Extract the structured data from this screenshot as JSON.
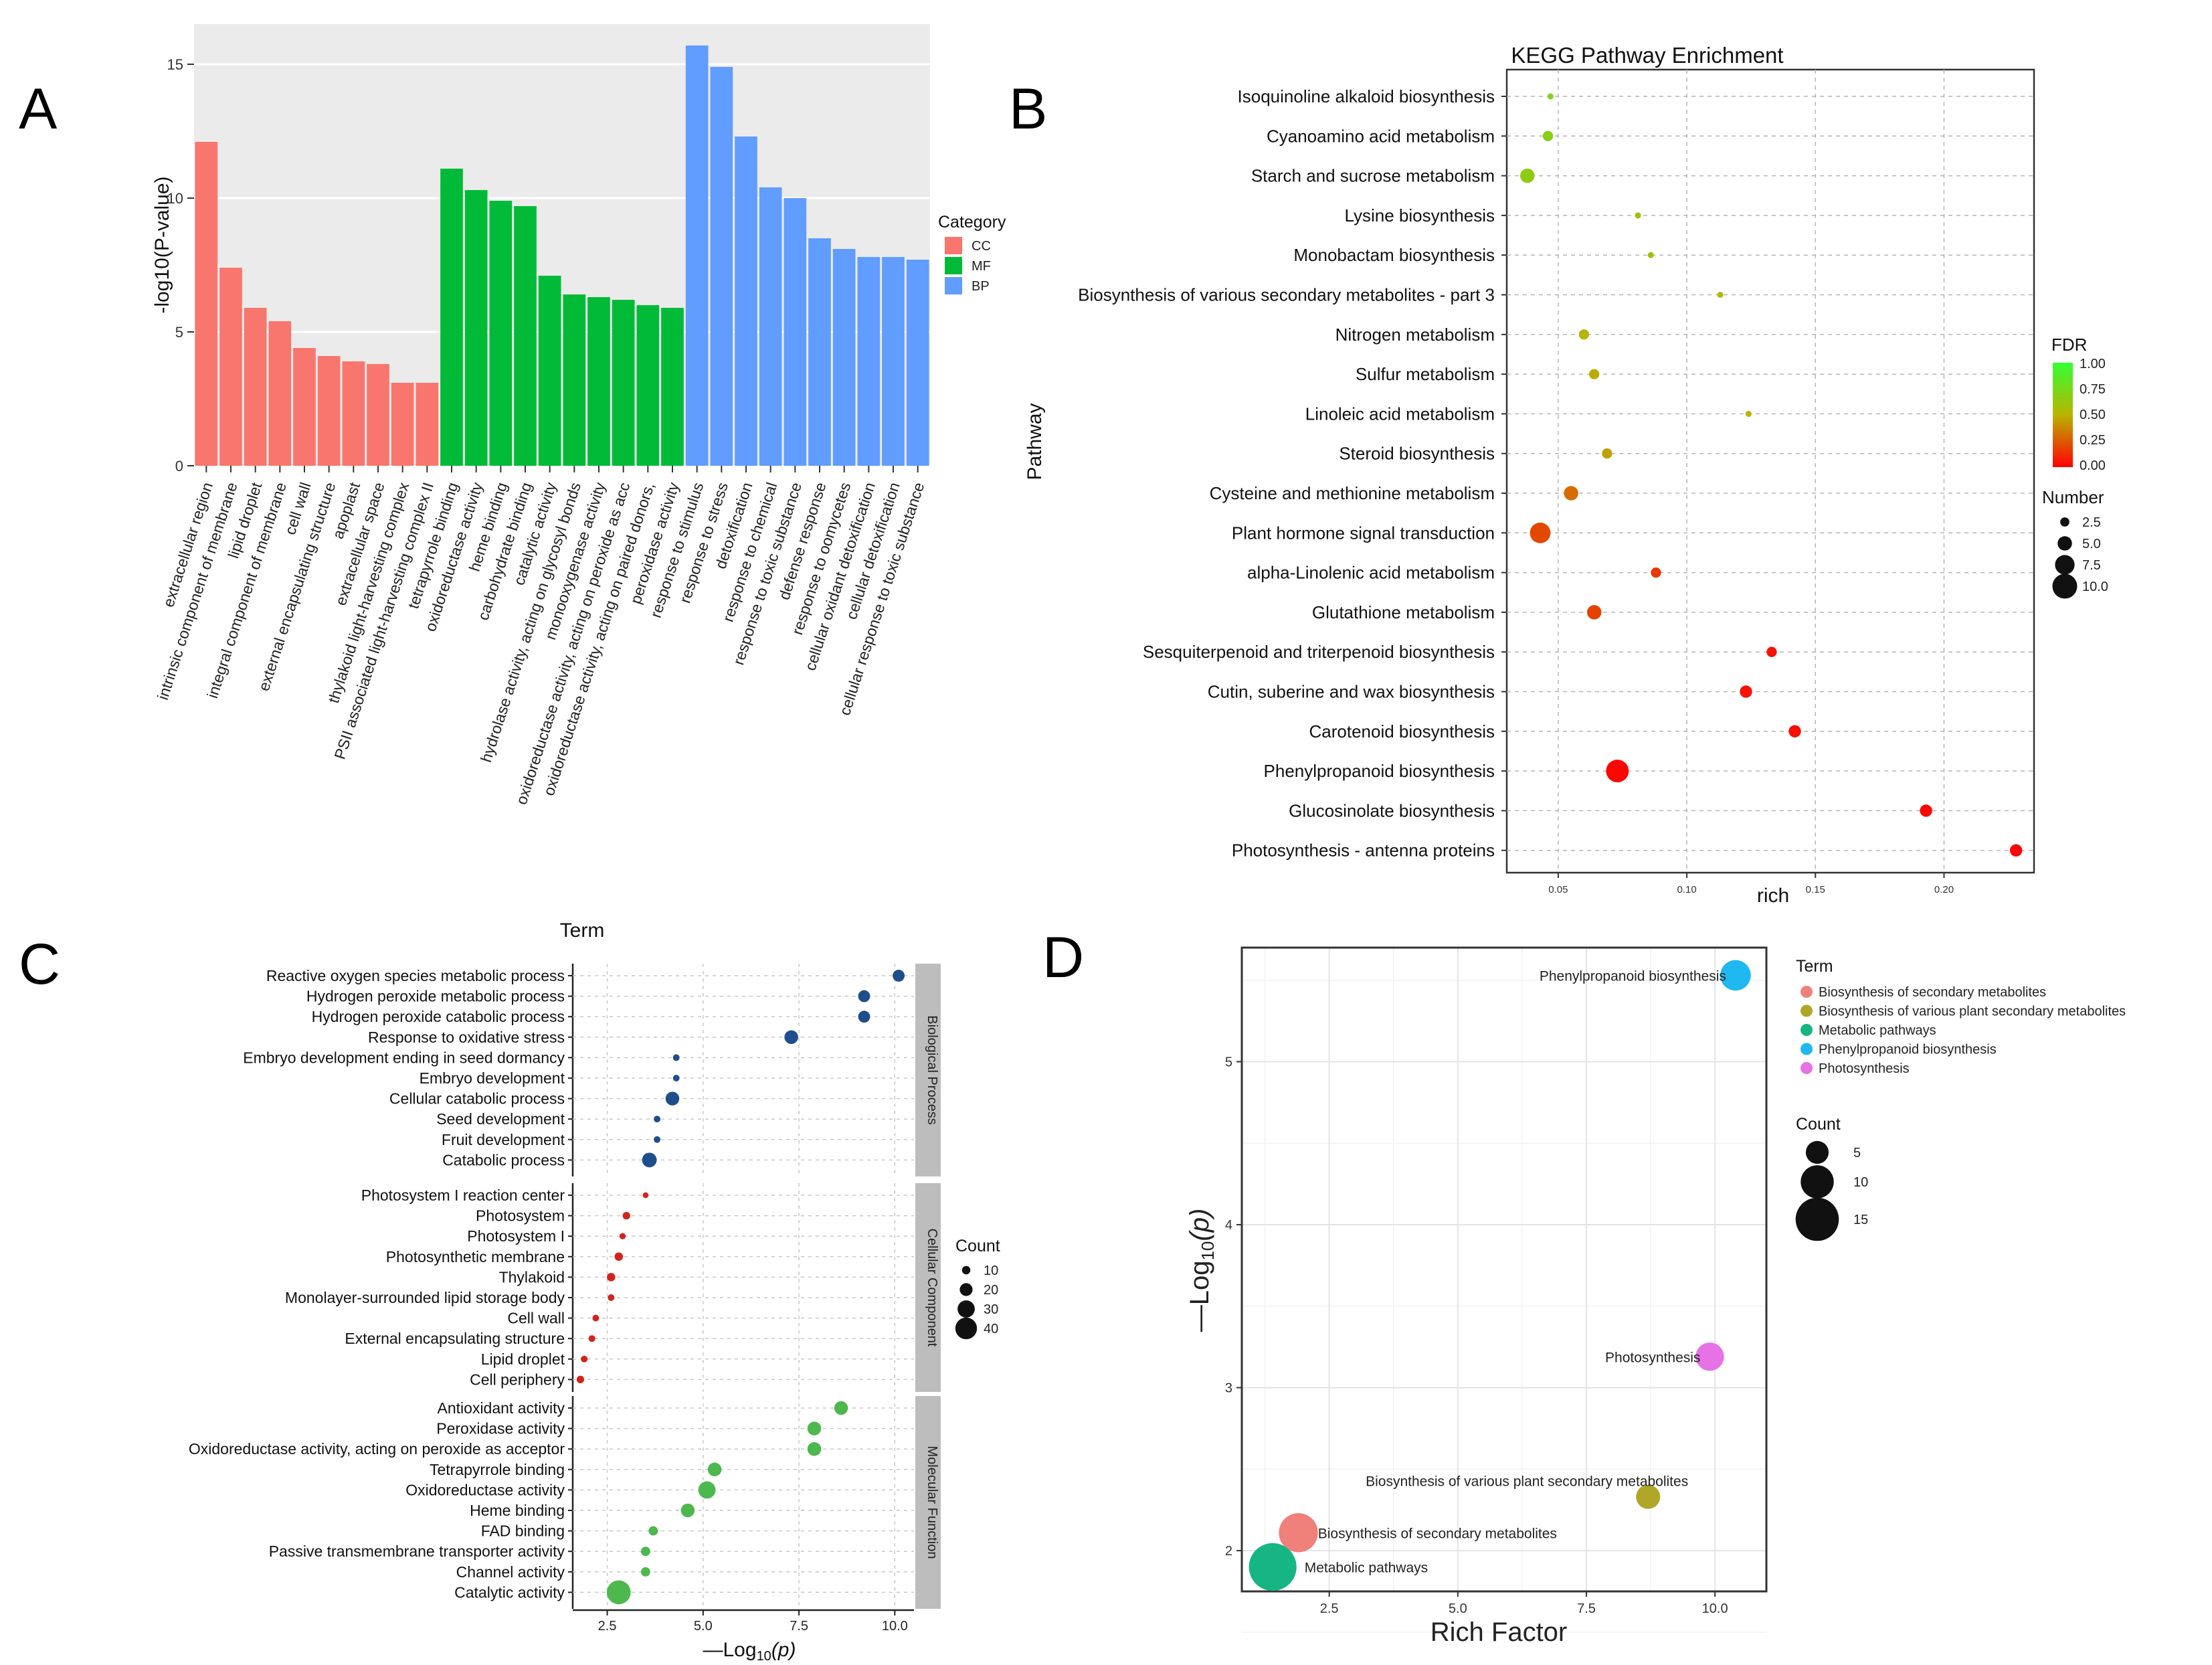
{
  "panel_labels": [
    "A",
    "B",
    "C",
    "D"
  ],
  "chart_data": [
    {
      "panel": "A",
      "type": "bar",
      "ylabel": "-log10(P-value)",
      "ylim": [
        0,
        16.5
      ],
      "yticks": [
        "0",
        "5",
        "10",
        "15"
      ],
      "ytick_values": [
        0,
        5,
        10,
        15
      ],
      "legend": {
        "title": "Category",
        "placement": "right",
        "entries": [
          {
            "name": "CC",
            "color": "#F8766D"
          },
          {
            "name": "MF",
            "color": "#00BA38"
          },
          {
            "name": "BP",
            "color": "#619CFF"
          }
        ]
      },
      "categories": [
        "extracellular region",
        "intrinsic component of membrane",
        "lipid droplet",
        "integral component of membrane",
        "cell wall",
        "external encapsulating structure",
        "apoplast",
        "extracellular space",
        "thylakoid light-harvesting complex",
        "PSII associated light-harvesting complex II",
        "tetrapyrrole binding",
        "oxidoreductase activity",
        "heme binding",
        "carbohydrate binding",
        "catalytic activity",
        "hydrolase activity, acting on glycosyl bonds",
        "monooxygenase activity",
        "oxidoreductase activity, acting on peroxide as acc",
        "oxidoreductase activity, acting on paired donors,",
        "peroxidase activity",
        "response to stimulus",
        "response to stress",
        "detoxification",
        "response to chemical",
        "response to toxic substance",
        "defense response",
        "response to oomycetes",
        "cellular oxidant detoxification",
        "cellular detoxification",
        "cellular response to toxic substance"
      ],
      "values": [
        12.1,
        7.4,
        5.9,
        5.4,
        4.4,
        4.1,
        3.9,
        3.8,
        3.1,
        3.1,
        11.1,
        10.3,
        9.9,
        9.7,
        7.1,
        6.4,
        6.3,
        6.2,
        6.0,
        5.9,
        15.7,
        14.9,
        12.3,
        10.4,
        10.0,
        8.5,
        8.1,
        7.8,
        7.8,
        7.7
      ],
      "groups": [
        "CC",
        "CC",
        "CC",
        "CC",
        "CC",
        "CC",
        "CC",
        "CC",
        "CC",
        "CC",
        "MF",
        "MF",
        "MF",
        "MF",
        "MF",
        "MF",
        "MF",
        "MF",
        "MF",
        "MF",
        "BP",
        "BP",
        "BP",
        "BP",
        "BP",
        "BP",
        "BP",
        "BP",
        "BP",
        "BP"
      ],
      "grid": true
    },
    {
      "panel": "B",
      "type": "scatter",
      "title": "KEGG Pathway Enrichment",
      "xlabel": "rich",
      "ylabel": "Pathway",
      "xlim": [
        0.03,
        0.235
      ],
      "xticks": [
        "0.05",
        "0.10",
        "0.15",
        "0.20"
      ],
      "xtick_values": [
        0.05,
        0.1,
        0.15,
        0.2
      ],
      "grid": true,
      "color_legend": {
        "title": "FDR",
        "labels": [
          "1.00",
          "0.75",
          "0.50",
          "0.25",
          "0.00"
        ],
        "low_color": "#FF0000",
        "mid_color": "#B8B400",
        "high_color": "#33FF33"
      },
      "size_legend": {
        "title": "Number",
        "labels": [
          "2.5",
          "5.0",
          "7.5",
          "10.0"
        ],
        "values": [
          2.5,
          5.0,
          7.5,
          10.0
        ]
      },
      "points": [
        {
          "label": "Isoquinoline alkaloid biosynthesis",
          "x": 0.047,
          "fdr": 0.72,
          "number": 1
        },
        {
          "label": "Cyanoamino acid metabolism",
          "x": 0.046,
          "fdr": 0.68,
          "number": 3
        },
        {
          "label": "Starch and sucrose metabolism",
          "x": 0.038,
          "fdr": 0.66,
          "number": 5
        },
        {
          "label": "Lysine biosynthesis",
          "x": 0.081,
          "fdr": 0.57,
          "number": 1
        },
        {
          "label": "Monobactam biosynthesis",
          "x": 0.086,
          "fdr": 0.58,
          "number": 1
        },
        {
          "label": "Biosynthesis of various secondary metabolites - part 3",
          "x": 0.113,
          "fdr": 0.55,
          "number": 1
        },
        {
          "label": "Nitrogen metabolism",
          "x": 0.06,
          "fdr": 0.5,
          "number": 3
        },
        {
          "label": "Sulfur metabolism",
          "x": 0.064,
          "fdr": 0.48,
          "number": 3
        },
        {
          "label": "Linoleic acid metabolism",
          "x": 0.124,
          "fdr": 0.5,
          "number": 1
        },
        {
          "label": "Steroid biosynthesis",
          "x": 0.069,
          "fdr": 0.45,
          "number": 3
        },
        {
          "label": "Cysteine and methionine metabolism",
          "x": 0.055,
          "fdr": 0.3,
          "number": 5
        },
        {
          "label": "Plant hormone signal transduction",
          "x": 0.043,
          "fdr": 0.2,
          "number": 8
        },
        {
          "label": "alpha-Linolenic acid metabolism",
          "x": 0.088,
          "fdr": 0.15,
          "number": 3
        },
        {
          "label": "Glutathione metabolism",
          "x": 0.064,
          "fdr": 0.18,
          "number": 5
        },
        {
          "label": "Sesquiterpenoid and triterpenoid biosynthesis",
          "x": 0.133,
          "fdr": 0.05,
          "number": 3
        },
        {
          "label": "Cutin, suberine and wax biosynthesis",
          "x": 0.123,
          "fdr": 0.05,
          "number": 4
        },
        {
          "label": "Carotenoid biosynthesis",
          "x": 0.142,
          "fdr": 0.04,
          "number": 4
        },
        {
          "label": "Phenylpropanoid biosynthesis",
          "x": 0.073,
          "fdr": 0.02,
          "number": 9
        },
        {
          "label": "Glucosinolate biosynthesis",
          "x": 0.193,
          "fdr": 0.02,
          "number": 4
        },
        {
          "label": "Photosynthesis - antenna proteins",
          "x": 0.228,
          "fdr": 0.01,
          "number": 4
        }
      ]
    },
    {
      "panel": "C",
      "type": "scatter",
      "title": "Term",
      "xlabel_main": "—Log",
      "xlabel_sub": "10",
      "xlabel_tail": "(p)",
      "xlim": [
        1.6,
        10.5
      ],
      "xticks": [
        "2.5",
        "5.0",
        "7.5",
        "10.0"
      ],
      "xtick_values": [
        2.5,
        5.0,
        7.5,
        10.0
      ],
      "grid": true,
      "size_legend": {
        "title": "Count",
        "labels": [
          "10",
          "20",
          "30",
          "40"
        ],
        "values": [
          10,
          20,
          30,
          40
        ]
      },
      "facets": [
        {
          "name": "Biological Process",
          "color": "#1F4E8C",
          "points": [
            {
              "label": "Reactive oxygen species metabolic process",
              "x": 10.1,
              "count": 18
            },
            {
              "label": "Hydrogen peroxide metabolic process",
              "x": 9.2,
              "count": 18
            },
            {
              "label": "Hydrogen peroxide catabolic process",
              "x": 9.2,
              "count": 18
            },
            {
              "label": "Response to oxidative stress",
              "x": 7.3,
              "count": 22
            },
            {
              "label": "Embryo development ending in seed dormancy",
              "x": 4.3,
              "count": 6
            },
            {
              "label": "Embryo development",
              "x": 4.3,
              "count": 6
            },
            {
              "label": "Cellular catabolic process",
              "x": 4.2,
              "count": 22
            },
            {
              "label": "Seed development",
              "x": 3.8,
              "count": 6
            },
            {
              "label": "Fruit development",
              "x": 3.8,
              "count": 6
            },
            {
              "label": "Catabolic process",
              "x": 3.6,
              "count": 24
            }
          ]
        },
        {
          "name": "Cellular Component",
          "color": "#D0241D",
          "points": [
            {
              "label": "Photosystem I reaction center",
              "x": 3.5,
              "count": 4
            },
            {
              "label": "Photosystem",
              "x": 3.0,
              "count": 8
            },
            {
              "label": "Photosystem I",
              "x": 2.9,
              "count": 5
            },
            {
              "label": "Photosynthetic membrane",
              "x": 2.8,
              "count": 10
            },
            {
              "label": "Thylakoid",
              "x": 2.6,
              "count": 10
            },
            {
              "label": "Monolayer-surrounded lipid storage body",
              "x": 2.6,
              "count": 6
            },
            {
              "label": "Cell wall",
              "x": 2.2,
              "count": 6
            },
            {
              "label": "External encapsulating structure",
              "x": 2.1,
              "count": 6
            },
            {
              "label": "Lipid droplet",
              "x": 1.9,
              "count": 6
            },
            {
              "label": "Cell periphery",
              "x": 1.8,
              "count": 8
            }
          ]
        },
        {
          "name": "Molecular Function",
          "color": "#4DB84D",
          "points": [
            {
              "label": "Antioxidant activity",
              "x": 8.6,
              "count": 22
            },
            {
              "label": "Peroxidase activity",
              "x": 7.9,
              "count": 22
            },
            {
              "label": "Oxidoreductase activity, acting on peroxide as acceptor",
              "x": 7.9,
              "count": 22
            },
            {
              "label": "Tetrapyrrole binding",
              "x": 5.3,
              "count": 22
            },
            {
              "label": "Oxidoreductase activity",
              "x": 5.1,
              "count": 30
            },
            {
              "label": "Heme binding",
              "x": 4.6,
              "count": 22
            },
            {
              "label": "FAD binding",
              "x": 3.7,
              "count": 12
            },
            {
              "label": "Passive transmembrane transporter activity",
              "x": 3.5,
              "count": 12
            },
            {
              "label": "Channel activity",
              "x": 3.5,
              "count": 12
            },
            {
              "label": "Catalytic activity",
              "x": 2.8,
              "count": 45
            }
          ]
        }
      ]
    },
    {
      "panel": "D",
      "type": "scatter",
      "xlabel": "Rich Factor",
      "ylabel_main": "—Log",
      "ylabel_sub": "10",
      "ylabel_tail": "(p)",
      "xlim": [
        0.8,
        11.0
      ],
      "ylim": [
        1.75,
        5.7
      ],
      "xticks": [
        "2.5",
        "5.0",
        "7.5",
        "10.0"
      ],
      "xtick_values": [
        2.5,
        5.0,
        7.5,
        10.0
      ],
      "yticks": [
        "2",
        "3",
        "4",
        "5"
      ],
      "ytick_values": [
        2,
        3,
        4,
        5
      ],
      "grid": true,
      "color_legend": {
        "title": "Term",
        "entries": [
          {
            "name": "Biosynthesis of secondary metabolites",
            "color": "#F0807A"
          },
          {
            "name": "Biosynthesis of various plant secondary metabolites",
            "color": "#B0A628"
          },
          {
            "name": "Metabolic pathways",
            "color": "#17B584"
          },
          {
            "name": "Phenylpropanoid biosynthesis",
            "color": "#20B8F0"
          },
          {
            "name": "Photosynthesis",
            "color": "#E672E6"
          }
        ]
      },
      "size_legend": {
        "title": "Count",
        "labels": [
          "5",
          "10",
          "15"
        ],
        "values": [
          5,
          10,
          15
        ]
      },
      "points": [
        {
          "label": "Phenylpropanoid biosynthesis",
          "x": 10.4,
          "y": 5.53,
          "count": 8,
          "color": "#20B8F0"
        },
        {
          "label": "Photosynthesis",
          "x": 9.9,
          "y": 3.19,
          "count": 7,
          "color": "#E672E6"
        },
        {
          "label": "Biosynthesis of various plant secondary metabolites",
          "x": 8.7,
          "y": 2.33,
          "count": 5,
          "color": "#B0A628"
        },
        {
          "label": "Biosynthesis of secondary metabolites",
          "x": 1.9,
          "y": 2.11,
          "count": 12,
          "color": "#F0807A"
        },
        {
          "label": "Metabolic pathways",
          "x": 1.4,
          "y": 1.9,
          "count": 16,
          "color": "#17B584"
        }
      ]
    }
  ]
}
